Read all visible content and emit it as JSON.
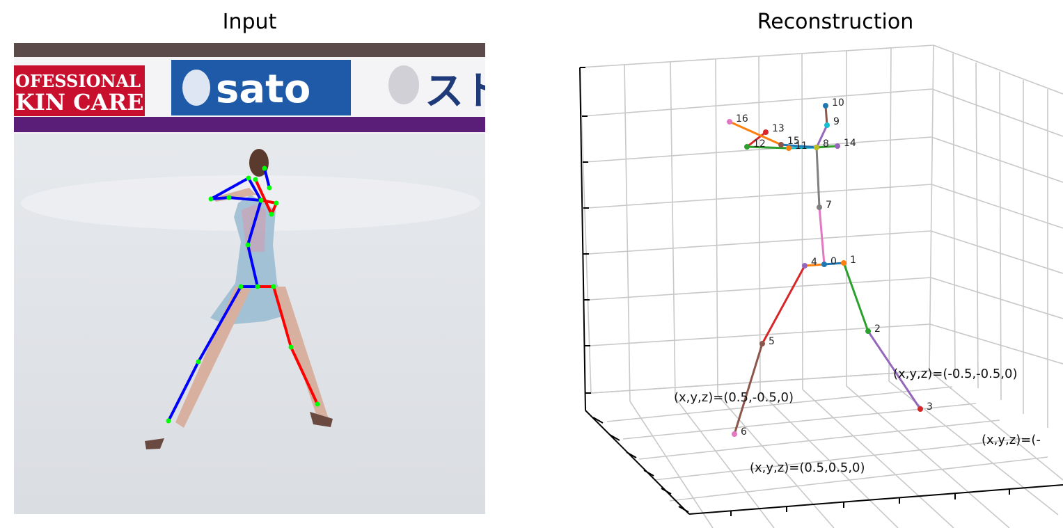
{
  "panels": {
    "left_title": "Input",
    "right_title": "Reconstruction"
  },
  "banners": {
    "left_line1": "OFESSIONAL",
    "left_line2": "KIN CARE",
    "center_logo": "sato",
    "right_text": "スト"
  },
  "colors": {
    "left_limbs": "#0000ff",
    "right_limbs": "#ff0000",
    "input_joints": "#00ff00",
    "grid": "#c8c8c8",
    "banner_red": "#c8102e",
    "banner_blue": "#1e5aa8",
    "board_purple": "#5a1e78"
  },
  "joint_labels": [
    "0",
    "1",
    "2",
    "3",
    "4",
    "5",
    "6",
    "7",
    "8",
    "9",
    "10",
    "11",
    "12",
    "13",
    "14",
    "15",
    "16"
  ],
  "corner_labels": {
    "c1": "(x,y,z)=(0.5,-0.5,0)",
    "c2": "(x,y,z)=(-0.5,-0.5,0)",
    "c3": "(x,y,z)=(0.5,0.5,0)",
    "c4": "(x,y,z)=(-"
  }
}
